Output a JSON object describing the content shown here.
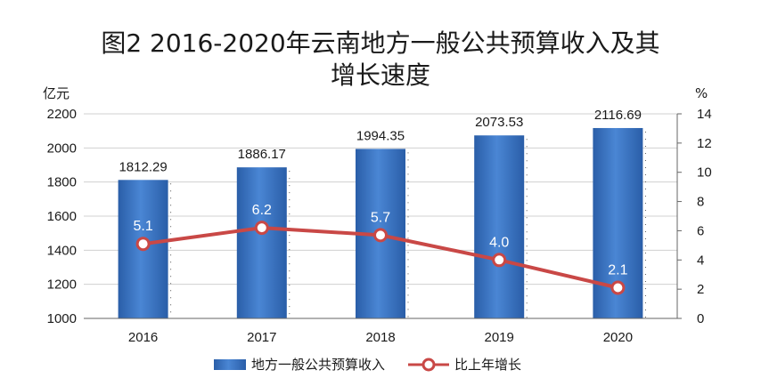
{
  "colors": {
    "bar": "#3d78c8",
    "bar_dark": "#24509a",
    "line": "#c94846",
    "marker_fill": "#ffffff",
    "grid": "#d0d0d0",
    "axis": "#666666"
  },
  "chart_data": {
    "type": "bar",
    "title_lines": [
      "图2  2016-2020年云南地方一般公共预算收入及其",
      "增长速度"
    ],
    "categories": [
      "2016",
      "2017",
      "2018",
      "2019",
      "2020"
    ],
    "left_unit": "亿元",
    "right_unit": "%",
    "ylim_left": [
      1000,
      2200
    ],
    "yticks_left": [
      "1000",
      "1200",
      "1400",
      "1600",
      "1800",
      "2000",
      "2200"
    ],
    "ylim_right": [
      0,
      14
    ],
    "yticks_right": [
      "0",
      "2",
      "4",
      "6",
      "8",
      "10",
      "12",
      "14"
    ],
    "grid": true,
    "legend_position": "bottom",
    "series": [
      {
        "name": "地方一般公共预算收入",
        "kind": "bar",
        "axis": "left",
        "values": [
          1812.29,
          1886.17,
          1994.35,
          2073.53,
          2116.69
        ],
        "labels": [
          "1812.29",
          "1886.17",
          "1994.35",
          "2073.53",
          "2116.69"
        ]
      },
      {
        "name": "比上年增长",
        "kind": "line",
        "axis": "right",
        "values": [
          5.1,
          6.2,
          5.7,
          4.0,
          2.1
        ],
        "labels": [
          "5.1",
          "6.2",
          "5.7",
          "4.0",
          "2.1"
        ]
      }
    ]
  }
}
